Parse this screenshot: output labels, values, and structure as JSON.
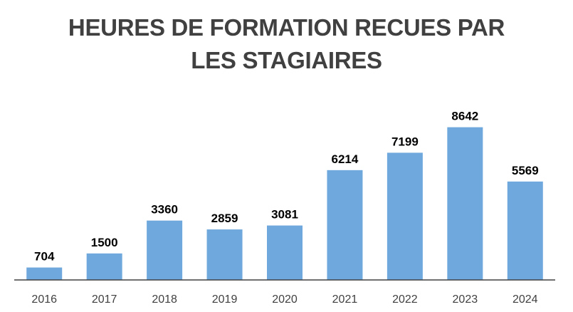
{
  "title_line1": "HEURES DE FORMATION RECUES PAR",
  "title_line2": "LES STAGIAIRES",
  "chart_data": {
    "type": "bar",
    "title": "HEURES DE FORMATION RECUES PAR LES STAGIAIRES",
    "categories": [
      "2016",
      "2017",
      "2018",
      "2019",
      "2020",
      "2021",
      "2022",
      "2023",
      "2024"
    ],
    "values": [
      704,
      1500,
      3360,
      2859,
      3081,
      6214,
      7199,
      8642,
      5569
    ],
    "data_labels": [
      "704",
      "1500",
      "3360",
      "2859",
      "3081",
      "6214",
      "7199",
      "8642",
      "5569"
    ],
    "xlabel": "",
    "ylabel": "",
    "ylim": [
      0,
      10400
    ],
    "grid": false,
    "legend": "none",
    "bar_color": "#6fa8dc",
    "axis_color": "#404040"
  }
}
